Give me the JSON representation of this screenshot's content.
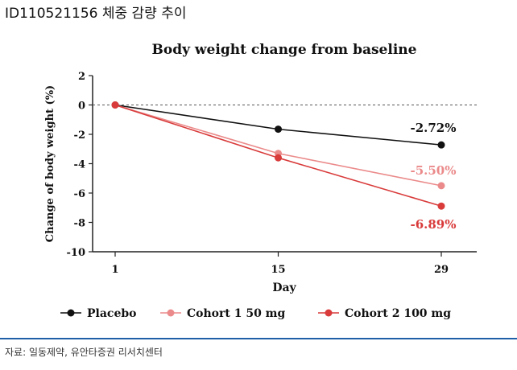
{
  "caption": "ID110521156 체중 감량 추이",
  "source": "자료: 일동제약, 유안타증권 리서치센터",
  "colors": {
    "placebo": "#111111",
    "cohort1": "#eb8a8a",
    "cohort2": "#d93b3b",
    "rule": "#1f5fa8"
  },
  "chart_data": {
    "type": "line",
    "title": "Body weight change from baseline",
    "xlabel": "Day",
    "ylabel": "Change of body weight (%)",
    "x": [
      1,
      15,
      29
    ],
    "x_ticks": [
      "1",
      "15",
      "29"
    ],
    "y_ticks": [
      "2",
      "0",
      "-2",
      "-4",
      "-6",
      "-8",
      "-10"
    ],
    "ylim": [
      -10,
      2
    ],
    "baseline": 0,
    "legend_position": "bottom",
    "series": [
      {
        "name": "Placebo",
        "values": [
          0,
          -1.65,
          -2.72
        ],
        "label": "-2.72%",
        "color": "#111111"
      },
      {
        "name": "Cohort 1 50 mg",
        "values": [
          0,
          -3.3,
          -5.5
        ],
        "label": "-5.50%",
        "color": "#eb8a8a"
      },
      {
        "name": "Cohort 2 100 mg",
        "values": [
          0,
          -3.6,
          -6.89
        ],
        "label": "-6.89%",
        "color": "#d93b3b"
      }
    ]
  }
}
